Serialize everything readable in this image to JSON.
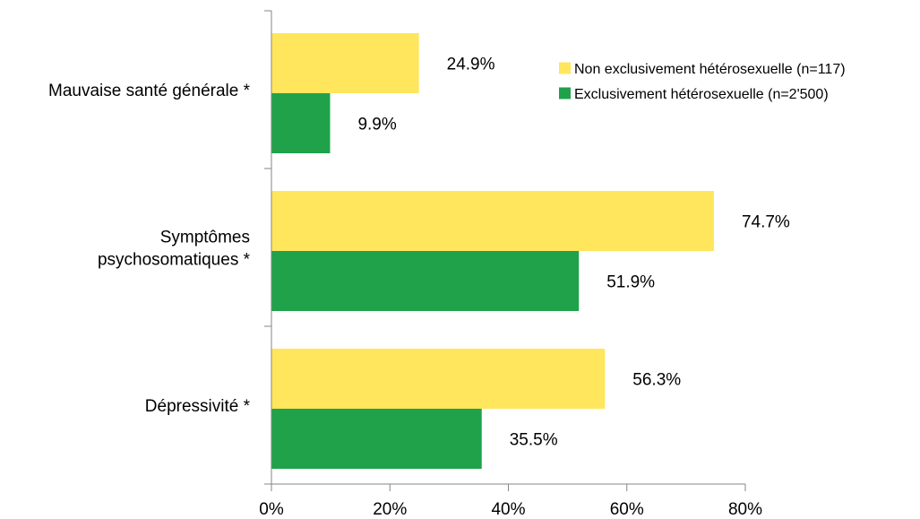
{
  "chart_data": {
    "type": "bar",
    "orientation": "horizontal",
    "categories": [
      [
        "Mauvaise santé générale *"
      ],
      [
        "Symptômes",
        "psychosomatiques *"
      ],
      [
        "Dépressivité *"
      ]
    ],
    "series": [
      {
        "name": "Non exclusivement hétérosexuelle (n=117)",
        "color": "#FFE65C",
        "values": [
          24.9,
          74.7,
          56.3
        ],
        "labels": [
          "24.9%",
          "74.7%",
          "56.3%"
        ]
      },
      {
        "name": "Exclusivement hétérosexuelle (n=2'500)",
        "color": "#1FA24A",
        "values": [
          9.9,
          51.9,
          35.5
        ],
        "labels": [
          "9.9%",
          "51.9%",
          "35.5%"
        ]
      }
    ],
    "xlim": [
      0,
      80
    ],
    "xticks": [
      0,
      20,
      40,
      60,
      80
    ],
    "xtick_labels": [
      "0%",
      "20%",
      "40%",
      "60%",
      "80%"
    ],
    "grid": false,
    "legend_position": "top-right"
  }
}
